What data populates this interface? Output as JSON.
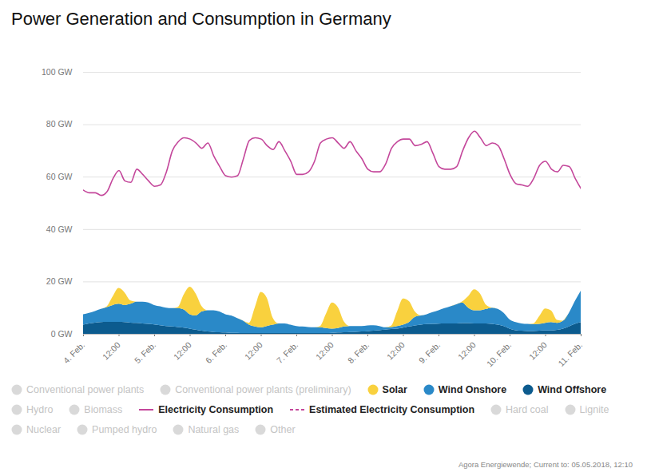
{
  "chart_data": {
    "type": "area",
    "title": "Power Generation and Consumption in Germany",
    "caption": "Agora Energiewende; Current to: 05.05.2018, 12:10",
    "stacked": true,
    "grid": true,
    "legend": "bottom",
    "legend_entries": [
      "Conventional power plants",
      "Conventional power plants (preliminary)",
      "Solar",
      "Wind Onshore",
      "Wind Offshore",
      "Hydro",
      "Biomass",
      "Electricity Consumption",
      "Estimated Electricity Consumption",
      "Hard coal",
      "Lignite",
      "Nuclear",
      "Pumped hydro",
      "Natural gas",
      "Other"
    ],
    "xlim": [
      0,
      168
    ],
    "xticks": [
      {
        "value": 0,
        "label": "4. Feb."
      },
      {
        "value": 12,
        "label": "12:00"
      },
      {
        "value": 24,
        "label": "5. Feb."
      },
      {
        "value": 36,
        "label": "12:00"
      },
      {
        "value": 48,
        "label": "6. Feb."
      },
      {
        "value": 60,
        "label": "12:00"
      },
      {
        "value": 72,
        "label": "7. Feb."
      },
      {
        "value": 84,
        "label": "12:00"
      },
      {
        "value": 96,
        "label": "8. Feb."
      },
      {
        "value": 108,
        "label": "12:00"
      },
      {
        "value": 120,
        "label": "9. Feb."
      },
      {
        "value": 132,
        "label": "12:00"
      },
      {
        "value": 144,
        "label": "10. Feb."
      },
      {
        "value": 156,
        "label": "12:00"
      },
      {
        "value": 168,
        "label": "11. Feb."
      }
    ],
    "ylim": [
      0,
      100
    ],
    "yticks": [
      {
        "value": 0,
        "label": "0 GW"
      },
      {
        "value": 20,
        "label": "20 GW"
      },
      {
        "value": 40,
        "label": "40 GW"
      },
      {
        "value": 60,
        "label": "60 GW"
      },
      {
        "value": 80,
        "label": "80 GW"
      },
      {
        "value": 100,
        "label": "100 GW"
      }
    ],
    "x": [
      0,
      2,
      4,
      6,
      8,
      10,
      12,
      14,
      16,
      18,
      20,
      22,
      24,
      26,
      28,
      30,
      32,
      34,
      36,
      38,
      40,
      42,
      44,
      46,
      48,
      50,
      52,
      54,
      56,
      58,
      60,
      62,
      64,
      66,
      68,
      70,
      72,
      74,
      76,
      78,
      80,
      82,
      84,
      86,
      88,
      90,
      92,
      94,
      96,
      98,
      100,
      102,
      104,
      106,
      108,
      110,
      112,
      114,
      116,
      118,
      120,
      122,
      124,
      126,
      128,
      130,
      132,
      134,
      136,
      138,
      140,
      142,
      144,
      146,
      148,
      150,
      152,
      154,
      156,
      158,
      160,
      162,
      164,
      166,
      168
    ],
    "series": [
      {
        "name": "Solar",
        "type": "area",
        "color": "#f9d13e",
        "values": [
          0,
          0,
          0,
          0,
          0.3,
          3.3,
          6,
          4.8,
          1.2,
          0,
          0,
          0,
          0,
          0,
          0,
          0,
          0.5,
          5.8,
          10.5,
          8.4,
          2.1,
          0,
          0,
          0,
          0,
          0,
          0,
          0,
          0.7,
          7.4,
          13.5,
          10.8,
          2.7,
          0,
          0,
          0,
          0,
          0,
          0,
          0,
          0.5,
          5.5,
          10,
          8,
          2,
          0,
          0,
          0,
          0,
          0,
          0,
          0,
          0.5,
          5.5,
          10,
          8,
          2,
          0,
          0,
          0,
          0,
          0,
          0,
          0,
          0.4,
          4.4,
          8,
          6.4,
          1.6,
          0,
          0,
          0,
          0,
          0,
          0,
          0,
          0.3,
          3,
          5.5,
          4.4,
          1.1,
          0,
          0,
          0,
          0
        ]
      },
      {
        "name": "Wind Onshore",
        "type": "area",
        "color": "#2a89c8",
        "values": [
          4,
          4,
          4.4,
          5,
          5.6,
          6.4,
          6.9,
          6.5,
          7.2,
          8.1,
          8.3,
          8.2,
          7.4,
          7.2,
          7,
          7,
          7.2,
          6.9,
          5.5,
          5.4,
          7.3,
          8.1,
          8.3,
          7.9,
          7,
          6.6,
          5.6,
          4.7,
          3.2,
          2.5,
          2.2,
          2.7,
          3.2,
          3.7,
          3.7,
          3.2,
          2.7,
          2.5,
          2.3,
          2.2,
          2.2,
          1.9,
          1.6,
          1.7,
          2.2,
          2.3,
          2.2,
          2.1,
          2.2,
          2.1,
          1.6,
          0.9,
          0.8,
          1,
          1.1,
          1.7,
          3.3,
          3.5,
          3.8,
          4.5,
          5.1,
          5.8,
          6.5,
          7.3,
          7.9,
          5.9,
          5,
          5,
          5.5,
          6.2,
          6,
          5,
          3.5,
          3.1,
          2.8,
          2.7,
          2.6,
          2.6,
          2.9,
          3.2,
          2.7,
          3,
          5.2,
          8.7,
          12
        ]
      },
      {
        "name": "Wind Offshore",
        "type": "area",
        "color": "#0c5b8e",
        "values": [
          3.5,
          4,
          4.3,
          4.5,
          4.6,
          4.6,
          4.6,
          4.5,
          4.3,
          4.2,
          4,
          3.8,
          3.6,
          3.3,
          3,
          2.8,
          2.6,
          2.4,
          2,
          1.6,
          1.2,
          0.9,
          0.7,
          0.6,
          0.5,
          0.4,
          0.4,
          0.3,
          0.3,
          0.3,
          0.3,
          0.3,
          0.3,
          0.3,
          0.3,
          0.3,
          0.3,
          0.3,
          0.3,
          0.3,
          0.3,
          0.3,
          0.4,
          0.5,
          0.6,
          0.7,
          0.8,
          0.9,
          1,
          1.2,
          1.4,
          1.6,
          1.8,
          2,
          2.4,
          2.8,
          3.2,
          3.5,
          3.7,
          3.8,
          3.9,
          4,
          4,
          4,
          4.1,
          4.1,
          4,
          4,
          4,
          3.8,
          3.5,
          3,
          2,
          1.4,
          1.2,
          1.1,
          1.1,
          1.2,
          1.3,
          1.3,
          1.5,
          2,
          2.8,
          3.8,
          4.5
        ]
      },
      {
        "name": "Electricity Consumption",
        "type": "line",
        "line_style": "solid",
        "color": "#c4479b",
        "values": [
          55,
          54,
          54,
          53,
          54.5,
          59.5,
          62.5,
          58.5,
          58,
          63,
          61,
          58.5,
          56.5,
          57,
          62,
          70,
          73.5,
          75,
          74.5,
          73,
          71,
          73,
          68,
          64,
          60.5,
          60,
          60.5,
          67,
          74,
          75,
          74.5,
          72,
          70.5,
          73.5,
          70,
          66,
          61,
          61,
          62,
          66,
          73,
          74.5,
          75,
          73,
          71,
          73.5,
          70,
          67,
          63,
          62,
          62,
          65,
          71,
          73.5,
          74.5,
          74.5,
          72,
          72.5,
          73.5,
          69,
          64,
          63,
          63,
          64,
          70,
          75,
          77.5,
          75,
          72,
          73,
          72,
          67,
          61,
          57.5,
          57,
          56.5,
          59.5,
          64.5,
          66,
          63,
          62,
          64.5,
          64,
          59.5,
          55.5
        ]
      },
      {
        "name": "Estimated Electricity Consumption",
        "type": "line",
        "line_style": "dashed",
        "color": "#c4479b",
        "values": [
          null,
          null,
          null,
          null,
          null,
          null,
          null,
          null,
          null,
          null,
          null,
          null,
          null,
          null,
          null,
          null,
          null,
          null,
          null,
          null,
          null,
          null,
          null,
          null,
          null,
          null,
          null,
          null,
          null,
          null,
          null,
          null,
          null,
          null,
          null,
          null,
          null,
          null,
          null,
          null,
          null,
          null,
          null,
          null,
          null,
          null,
          null,
          null,
          null,
          null,
          null,
          null,
          null,
          null,
          null,
          null,
          null,
          null,
          null,
          null,
          null,
          null,
          null,
          null,
          null,
          null,
          null,
          null,
          null,
          null,
          null,
          null,
          null,
          null,
          null,
          null,
          null,
          null,
          null,
          null,
          null,
          null,
          null,
          null,
          null
        ]
      }
    ]
  }
}
